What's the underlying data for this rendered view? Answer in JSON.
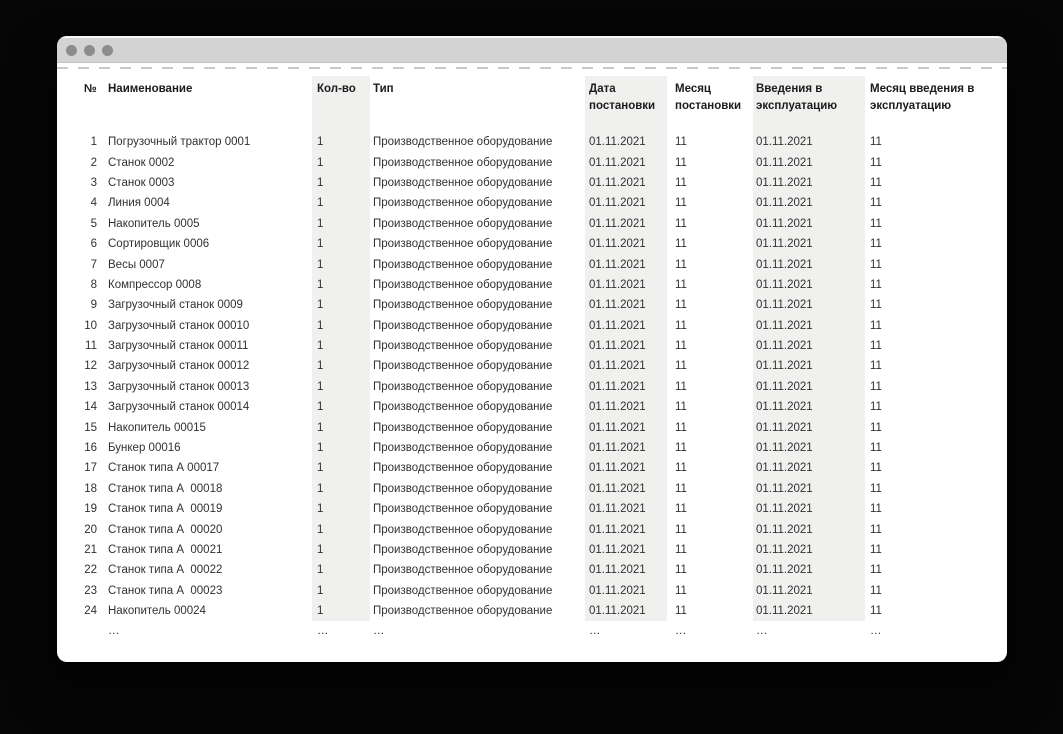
{
  "window": {
    "controls": [
      {
        "name": "close"
      },
      {
        "name": "minimize"
      },
      {
        "name": "zoom"
      }
    ]
  },
  "colors": {
    "background": "#060606",
    "titlebar": "#d3d3d3",
    "titlebar_highlight": "#f6f6f6",
    "traffic_light": "#8c8c8c",
    "column_shade": "#f0f0ef",
    "dash_line": "#c9c9c9",
    "header_text": "#1b1b1b",
    "body_text": "#313131"
  },
  "table": {
    "columns": [
      {
        "key": "num",
        "label": "№",
        "shaded": false
      },
      {
        "key": "name",
        "label": "Наименование",
        "shaded": false
      },
      {
        "key": "qty",
        "label": "Кол-во",
        "shaded": true
      },
      {
        "key": "type",
        "label": "Тип",
        "shaded": false
      },
      {
        "key": "date1",
        "label": "Дата постановки",
        "shaded": true
      },
      {
        "key": "month1",
        "label": "Месяц постановки",
        "shaded": false
      },
      {
        "key": "date2",
        "label": "Введения в эксплуатацию",
        "shaded": true
      },
      {
        "key": "month2",
        "label": "Месяц введения в эксплуатацию",
        "shaded": false
      }
    ],
    "rows": [
      [
        "1",
        "Погрузочный трактор 0001",
        "1",
        "Производственное оборудование",
        "01.11.2021",
        "11",
        "01.11.2021",
        "11"
      ],
      [
        "2",
        "Станок 0002",
        "1",
        "Производственное оборудование",
        "01.11.2021",
        "11",
        "01.11.2021",
        "11"
      ],
      [
        "3",
        "Станок 0003",
        "1",
        "Производственное оборудование",
        "01.11.2021",
        "11",
        "01.11.2021",
        "11"
      ],
      [
        "4",
        "Линия 0004",
        "1",
        "Производственное оборудование",
        "01.11.2021",
        "11",
        "01.11.2021",
        "11"
      ],
      [
        "5",
        "Накопитель 0005",
        "1",
        "Производственное оборудование",
        "01.11.2021",
        "11",
        "01.11.2021",
        "11"
      ],
      [
        "6",
        "Сортировщик 0006",
        "1",
        "Производственное оборудование",
        "01.11.2021",
        "11",
        "01.11.2021",
        "11"
      ],
      [
        "7",
        "Весы 0007",
        "1",
        "Производственное оборудование",
        "01.11.2021",
        "11",
        "01.11.2021",
        "11"
      ],
      [
        "8",
        "Компрессор 0008",
        "1",
        "Производственное оборудование",
        "01.11.2021",
        "11",
        "01.11.2021",
        "11"
      ],
      [
        "9",
        "Загрузочный станок 0009",
        "1",
        "Производственное оборудование",
        "01.11.2021",
        "11",
        "01.11.2021",
        "11"
      ],
      [
        "10",
        "Загрузочный станок 00010",
        "1",
        "Производственное оборудование",
        "01.11.2021",
        "11",
        "01.11.2021",
        "11"
      ],
      [
        "11",
        "Загрузочный станок 00011",
        "1",
        "Производственное оборудование",
        "01.11.2021",
        "11",
        "01.11.2021",
        "11"
      ],
      [
        "12",
        "Загрузочный станок 00012",
        "1",
        "Производственное оборудование",
        "01.11.2021",
        "11",
        "01.11.2021",
        "11"
      ],
      [
        "13",
        "Загрузочный станок 00013",
        "1",
        "Производственное оборудование",
        "01.11.2021",
        "11",
        "01.11.2021",
        "11"
      ],
      [
        "14",
        "Загрузочный станок 00014",
        "1",
        "Производственное оборудование",
        "01.11.2021",
        "11",
        "01.11.2021",
        "11"
      ],
      [
        "15",
        "Накопитель 00015",
        "1",
        "Производственное оборудование",
        "01.11.2021",
        "11",
        "01.11.2021",
        "11"
      ],
      [
        "16",
        "Бункер 00016",
        "1",
        "Производственное оборудование",
        "01.11.2021",
        "11",
        "01.11.2021",
        "11"
      ],
      [
        "17",
        "Станок типа А 00017",
        "1",
        "Производственное оборудование",
        "01.11.2021",
        "11",
        "01.11.2021",
        "11"
      ],
      [
        "18",
        "Станок типа А  00018",
        "1",
        "Производственное оборудование",
        "01.11.2021",
        "11",
        "01.11.2021",
        "11"
      ],
      [
        "19",
        "Станок типа А  00019",
        "1",
        "Производственное оборудование",
        "01.11.2021",
        "11",
        "01.11.2021",
        "11"
      ],
      [
        "20",
        "Станок типа А  00020",
        "1",
        "Производственное оборудование",
        "01.11.2021",
        "11",
        "01.11.2021",
        "11"
      ],
      [
        "21",
        "Станок типа А  00021",
        "1",
        "Производственное оборудование",
        "01.11.2021",
        "11",
        "01.11.2021",
        "11"
      ],
      [
        "22",
        "Станок типа А  00022",
        "1",
        "Производственное оборудование",
        "01.11.2021",
        "11",
        "01.11.2021",
        "11"
      ],
      [
        "23",
        "Станок типа А  00023",
        "1",
        "Производственное оборудование",
        "01.11.2021",
        "11",
        "01.11.2021",
        "11"
      ],
      [
        "24",
        "Накопитель 00024",
        "1",
        "Производственное оборудование",
        "01.11.2021",
        "11",
        "01.11.2021",
        "11"
      ]
    ],
    "ellipsis_row": [
      "",
      "…",
      "…",
      "…",
      "…",
      "…",
      "…",
      "…"
    ]
  }
}
